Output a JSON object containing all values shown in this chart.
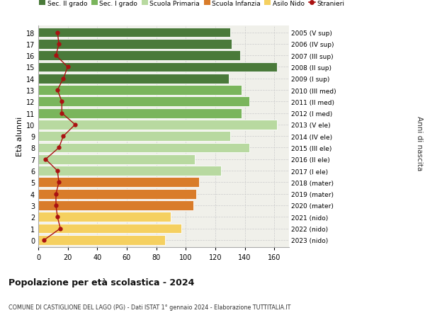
{
  "ages": [
    18,
    17,
    16,
    15,
    14,
    13,
    12,
    11,
    10,
    9,
    8,
    7,
    6,
    5,
    4,
    3,
    2,
    1,
    0
  ],
  "years": [
    "2005 (V sup)",
    "2006 (IV sup)",
    "2007 (III sup)",
    "2008 (II sup)",
    "2009 (I sup)",
    "2010 (III med)",
    "2011 (II med)",
    "2012 (I med)",
    "2013 (V ele)",
    "2014 (IV ele)",
    "2015 (III ele)",
    "2016 (II ele)",
    "2017 (I ele)",
    "2018 (mater)",
    "2019 (mater)",
    "2020 (mater)",
    "2021 (nido)",
    "2022 (nido)",
    "2023 (nido)"
  ],
  "bar_values": [
    130,
    131,
    137,
    162,
    129,
    138,
    143,
    138,
    162,
    130,
    143,
    106,
    124,
    109,
    107,
    105,
    90,
    97,
    86
  ],
  "bar_colors": [
    "#4a7a3a",
    "#4a7a3a",
    "#4a7a3a",
    "#4a7a3a",
    "#4a7a3a",
    "#7ab55c",
    "#7ab55c",
    "#7ab55c",
    "#b8d9a0",
    "#b8d9a0",
    "#b8d9a0",
    "#b8d9a0",
    "#b8d9a0",
    "#d97c2a",
    "#d97c2a",
    "#d97c2a",
    "#f5d060",
    "#f5d060",
    "#f5d060"
  ],
  "stranieri_values": [
    13,
    14,
    12,
    20,
    17,
    13,
    16,
    16,
    25,
    17,
    14,
    5,
    13,
    14,
    12,
    12,
    13,
    15,
    4
  ],
  "stranieri_color": "#aa1111",
  "legend_labels": [
    "Sec. II grado",
    "Sec. I grado",
    "Scuola Primaria",
    "Scuola Infanzia",
    "Asilo Nido",
    "Stranieri"
  ],
  "legend_colors": [
    "#4a7a3a",
    "#7ab55c",
    "#b8d9a0",
    "#d97c2a",
    "#f5d060",
    "#aa1111"
  ],
  "ylabel_left": "Età alunni",
  "ylabel_right": "Anni di nascita",
  "xlim": [
    0,
    170
  ],
  "xticks": [
    0,
    20,
    40,
    60,
    80,
    100,
    120,
    140,
    160
  ],
  "title": "Popolazione per età scolastica - 2024",
  "subtitle": "COMUNE DI CASTIGLIONE DEL LAGO (PG) - Dati ISTAT 1° gennaio 2024 - Elaborazione TUTTITALIA.IT",
  "bg_color": "#ffffff",
  "axes_bg_color": "#f0f0ea",
  "grid_color": "#cccccc"
}
